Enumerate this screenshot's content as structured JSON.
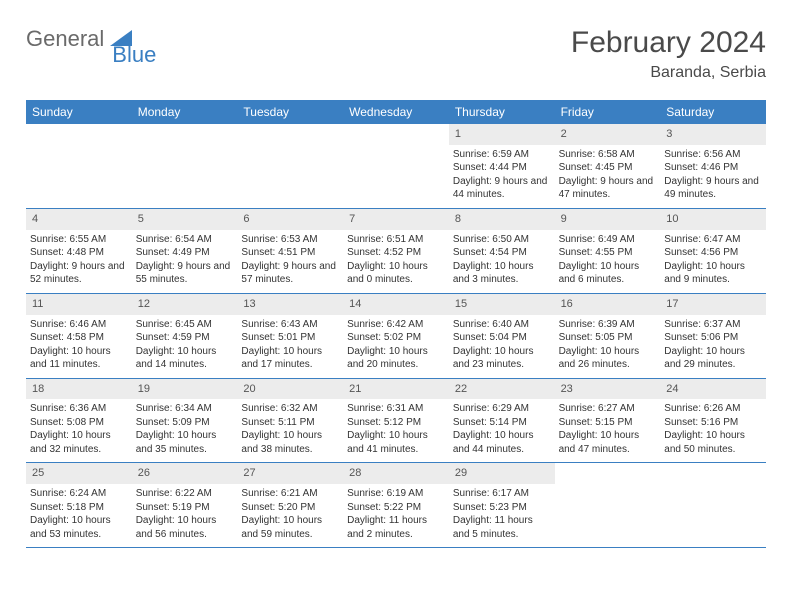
{
  "brand": {
    "part1": "General",
    "part2": "Blue"
  },
  "title": "February 2024",
  "location": "Baranda, Serbia",
  "colors": {
    "header_bg": "#3a7fc2",
    "header_text": "#ffffff",
    "daynum_bg": "#ececec",
    "rule": "#3a7fc2",
    "body_text": "#333333"
  },
  "layout": {
    "columns": 7,
    "cell_font_size": 10,
    "header_font_size": 12,
    "title_font_size": 30
  },
  "day_names": [
    "Sunday",
    "Monday",
    "Tuesday",
    "Wednesday",
    "Thursday",
    "Friday",
    "Saturday"
  ],
  "weeks": [
    [
      {
        "blank": true
      },
      {
        "blank": true
      },
      {
        "blank": true
      },
      {
        "blank": true
      },
      {
        "n": "1",
        "sunrise": "6:59 AM",
        "sunset": "4:44 PM",
        "daylight": "9 hours and 44 minutes."
      },
      {
        "n": "2",
        "sunrise": "6:58 AM",
        "sunset": "4:45 PM",
        "daylight": "9 hours and 47 minutes."
      },
      {
        "n": "3",
        "sunrise": "6:56 AM",
        "sunset": "4:46 PM",
        "daylight": "9 hours and 49 minutes."
      }
    ],
    [
      {
        "n": "4",
        "sunrise": "6:55 AM",
        "sunset": "4:48 PM",
        "daylight": "9 hours and 52 minutes."
      },
      {
        "n": "5",
        "sunrise": "6:54 AM",
        "sunset": "4:49 PM",
        "daylight": "9 hours and 55 minutes."
      },
      {
        "n": "6",
        "sunrise": "6:53 AM",
        "sunset": "4:51 PM",
        "daylight": "9 hours and 57 minutes."
      },
      {
        "n": "7",
        "sunrise": "6:51 AM",
        "sunset": "4:52 PM",
        "daylight": "10 hours and 0 minutes."
      },
      {
        "n": "8",
        "sunrise": "6:50 AM",
        "sunset": "4:54 PM",
        "daylight": "10 hours and 3 minutes."
      },
      {
        "n": "9",
        "sunrise": "6:49 AM",
        "sunset": "4:55 PM",
        "daylight": "10 hours and 6 minutes."
      },
      {
        "n": "10",
        "sunrise": "6:47 AM",
        "sunset": "4:56 PM",
        "daylight": "10 hours and 9 minutes."
      }
    ],
    [
      {
        "n": "11",
        "sunrise": "6:46 AM",
        "sunset": "4:58 PM",
        "daylight": "10 hours and 11 minutes."
      },
      {
        "n": "12",
        "sunrise": "6:45 AM",
        "sunset": "4:59 PM",
        "daylight": "10 hours and 14 minutes."
      },
      {
        "n": "13",
        "sunrise": "6:43 AM",
        "sunset": "5:01 PM",
        "daylight": "10 hours and 17 minutes."
      },
      {
        "n": "14",
        "sunrise": "6:42 AM",
        "sunset": "5:02 PM",
        "daylight": "10 hours and 20 minutes."
      },
      {
        "n": "15",
        "sunrise": "6:40 AM",
        "sunset": "5:04 PM",
        "daylight": "10 hours and 23 minutes."
      },
      {
        "n": "16",
        "sunrise": "6:39 AM",
        "sunset": "5:05 PM",
        "daylight": "10 hours and 26 minutes."
      },
      {
        "n": "17",
        "sunrise": "6:37 AM",
        "sunset": "5:06 PM",
        "daylight": "10 hours and 29 minutes."
      }
    ],
    [
      {
        "n": "18",
        "sunrise": "6:36 AM",
        "sunset": "5:08 PM",
        "daylight": "10 hours and 32 minutes."
      },
      {
        "n": "19",
        "sunrise": "6:34 AM",
        "sunset": "5:09 PM",
        "daylight": "10 hours and 35 minutes."
      },
      {
        "n": "20",
        "sunrise": "6:32 AM",
        "sunset": "5:11 PM",
        "daylight": "10 hours and 38 minutes."
      },
      {
        "n": "21",
        "sunrise": "6:31 AM",
        "sunset": "5:12 PM",
        "daylight": "10 hours and 41 minutes."
      },
      {
        "n": "22",
        "sunrise": "6:29 AM",
        "sunset": "5:14 PM",
        "daylight": "10 hours and 44 minutes."
      },
      {
        "n": "23",
        "sunrise": "6:27 AM",
        "sunset": "5:15 PM",
        "daylight": "10 hours and 47 minutes."
      },
      {
        "n": "24",
        "sunrise": "6:26 AM",
        "sunset": "5:16 PM",
        "daylight": "10 hours and 50 minutes."
      }
    ],
    [
      {
        "n": "25",
        "sunrise": "6:24 AM",
        "sunset": "5:18 PM",
        "daylight": "10 hours and 53 minutes."
      },
      {
        "n": "26",
        "sunrise": "6:22 AM",
        "sunset": "5:19 PM",
        "daylight": "10 hours and 56 minutes."
      },
      {
        "n": "27",
        "sunrise": "6:21 AM",
        "sunset": "5:20 PM",
        "daylight": "10 hours and 59 minutes."
      },
      {
        "n": "28",
        "sunrise": "6:19 AM",
        "sunset": "5:22 PM",
        "daylight": "11 hours and 2 minutes."
      },
      {
        "n": "29",
        "sunrise": "6:17 AM",
        "sunset": "5:23 PM",
        "daylight": "11 hours and 5 minutes."
      },
      {
        "blank": true
      },
      {
        "blank": true
      }
    ]
  ],
  "labels": {
    "sunrise": "Sunrise: ",
    "sunset": "Sunset: ",
    "daylight": "Daylight: "
  }
}
